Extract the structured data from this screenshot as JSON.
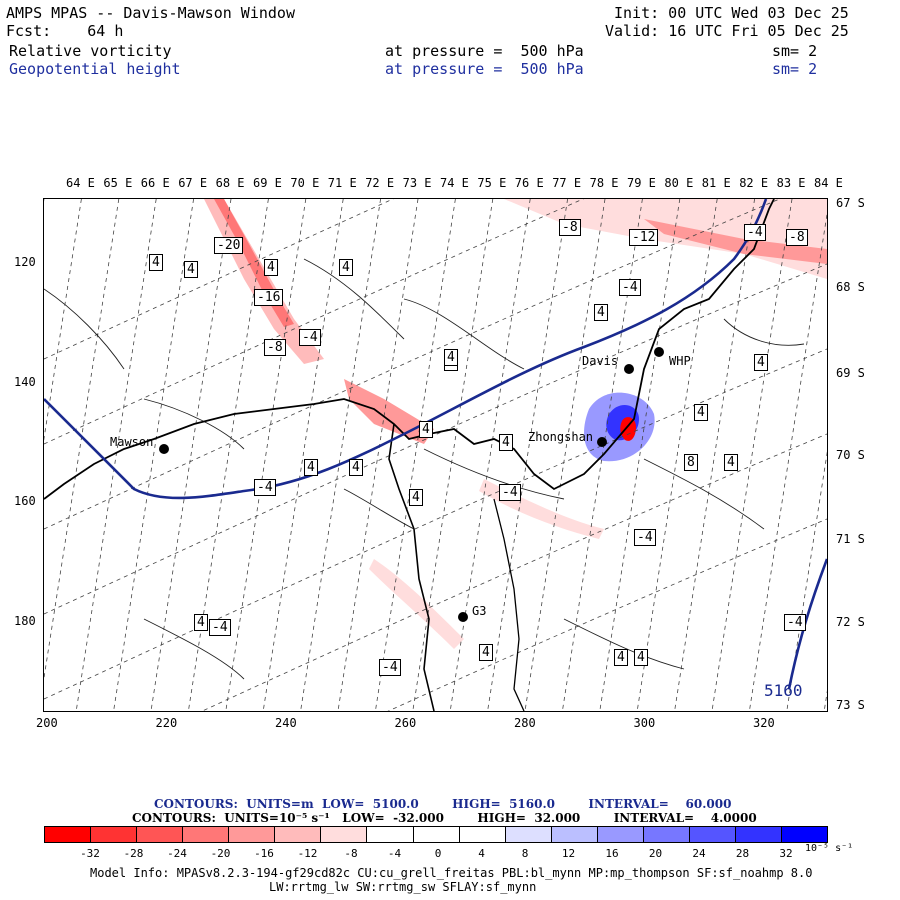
{
  "header": {
    "title": "AMPS MPAS -- Davis-Mawson Window",
    "init": "Init: 00 UTC Wed 03 Dec 25",
    "fcst": "Fcst:    64 h",
    "valid": "Valid: 16 UTC Fri 05 Dec 25",
    "field1": {
      "name": "Relative vorticity",
      "at": "at pressure =  500 hPa",
      "sm": "sm= 2"
    },
    "field2": {
      "name": "Geopotential height",
      "at": "at pressure =  500 hPa",
      "sm": "sm= 2"
    }
  },
  "axes": {
    "top_lon_labels": [
      "64 E",
      "65 E",
      "66 E",
      "67 E",
      "68 E",
      "69 E",
      "70 E",
      "71 E",
      "72 E",
      "73 E",
      "74 E",
      "75 E",
      "76 E",
      "77 E",
      "78 E",
      "79 E",
      "80 E",
      "81 E",
      "82 E",
      "83 E",
      "84 E"
    ],
    "right_lat_labels": [
      "67 S",
      "68 S",
      "69 S",
      "70 S",
      "71 S",
      "72 S",
      "73 S"
    ],
    "x_ticks": [
      "200",
      "220",
      "240",
      "260",
      "280",
      "300",
      "320"
    ],
    "y_ticks": [
      "120",
      "140",
      "160",
      "180"
    ]
  },
  "stations": [
    {
      "name": "Mawson"
    },
    {
      "name": "Davis"
    },
    {
      "name": "WHP"
    },
    {
      "name": "Zhongshan"
    },
    {
      "name": "G3"
    }
  ],
  "contour_labels": [
    "-20",
    "-16",
    "-8",
    "-4",
    "4",
    "-8",
    "-12",
    "-4",
    "-8",
    "-4",
    "4",
    "4",
    "4",
    "4",
    "4",
    "4",
    "4",
    "-4",
    "4",
    "4",
    "-4",
    "4",
    "4",
    "4",
    "-4",
    "4",
    "-4",
    "4",
    "8",
    "4",
    "-4",
    "-4",
    "4",
    "4",
    "4"
  ],
  "height_label": "5160",
  "legend": {
    "contours1": "CONTOURS:  UNITS=m  LOW=  5100.0        HIGH=  5160.0        INTERVAL=    60.000",
    "contours2": "CONTOURS:  UNITS=10⁻⁵ s⁻¹   LOW=  -32.000        HIGH=  32.000        INTERVAL=    4.0000",
    "colors": [
      "#ff0000",
      "#ff3333",
      "#ff5555",
      "#ff7777",
      "#ff9999",
      "#ffbbbb",
      "#ffdddd",
      "#ffffff",
      "#ffffff",
      "#ffffff",
      "#dddfff",
      "#bbbfff",
      "#9999ff",
      "#7777ff",
      "#5555ff",
      "#3333ff",
      "#0000ff"
    ],
    "ticks": [
      "-32",
      "-28",
      "-24",
      "-20",
      "-16",
      "-12",
      "-8",
      "-4",
      "0",
      "4",
      "8",
      "12",
      "16",
      "20",
      "24",
      "28",
      "32"
    ],
    "unit": "10⁻⁵ s⁻¹"
  },
  "footer": {
    "line1": "Model Info: MPASv8.2.3-194-gf29cd82c CU:cu_grell_freitas PBL:bl_mynn MP:mp_thompson SF:sf_noahmp 8.0",
    "line2": "LW:rrtmg_lw SW:rrtmg_sw SFLAY:sf_mynn"
  },
  "colors": {
    "height_contour": "#1a2a8f",
    "neg_vort": "#ff0000",
    "pos_vort": "#0000ff"
  }
}
